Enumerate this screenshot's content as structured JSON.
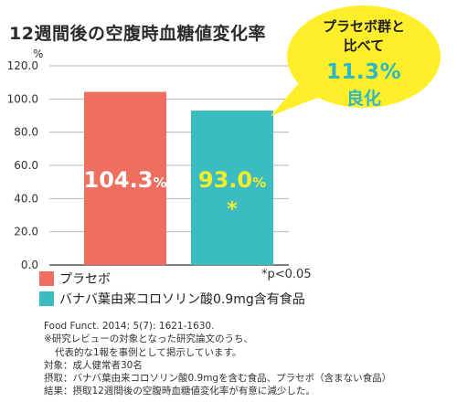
{
  "header": {
    "title": "12週間後の空腹時血糖値変化率",
    "unit": "%"
  },
  "callout": {
    "line1": "プラセボ群と",
    "line2": "比べて",
    "line3": "11.3%",
    "line4": "良化"
  },
  "chart_data": {
    "type": "bar",
    "categories": [
      "プラセボ",
      "バナバ葉由来コロソリン酸0.9mg含有食品"
    ],
    "values": [
      104.3,
      93.0
    ],
    "data_labels": [
      {
        "number": "104.3",
        "unit": "%"
      },
      {
        "number": "93.0",
        "unit": "%"
      }
    ],
    "significance_marks": [
      "",
      "*"
    ],
    "ylim": [
      0,
      120
    ],
    "yticks": [
      "0.0",
      "20.0",
      "40.0",
      "60.0",
      "80.0",
      "100.0",
      "120.0"
    ],
    "ylabel": "%",
    "grid": true,
    "colors": [
      "#ee6f5f",
      "#3bbcc1"
    ],
    "value_label_colors": [
      "#ffffff",
      "#f2ee2b"
    ]
  },
  "legend": {
    "items": [
      {
        "label": "プラセボ",
        "color": "#ee6f5f"
      },
      {
        "label": "バナバ葉由来コロソリン酸0.9mg含有食品",
        "color": "#3bbcc1"
      }
    ],
    "significance_note": "*p<0.05"
  },
  "notes": {
    "citation": "Food Funct. 2014; 5(7): 1621-1630.",
    "line2": "※研究レビューの対象となった研究論文のうち、",
    "line3": "代表的な1報を事例として掲示しています。",
    "line4": "対象：成人健常者30名",
    "line5": "摂取：バナバ葉由来コロソリン酸0.9mgを含む食品、プラセボ（含まない食品）",
    "line6": "結果：摂取12週間後の空腹時血糖値変化率が有意に減少した。"
  },
  "colors": {
    "bubble": "#ffef2a",
    "callout_accent": "#2fb7c2"
  }
}
